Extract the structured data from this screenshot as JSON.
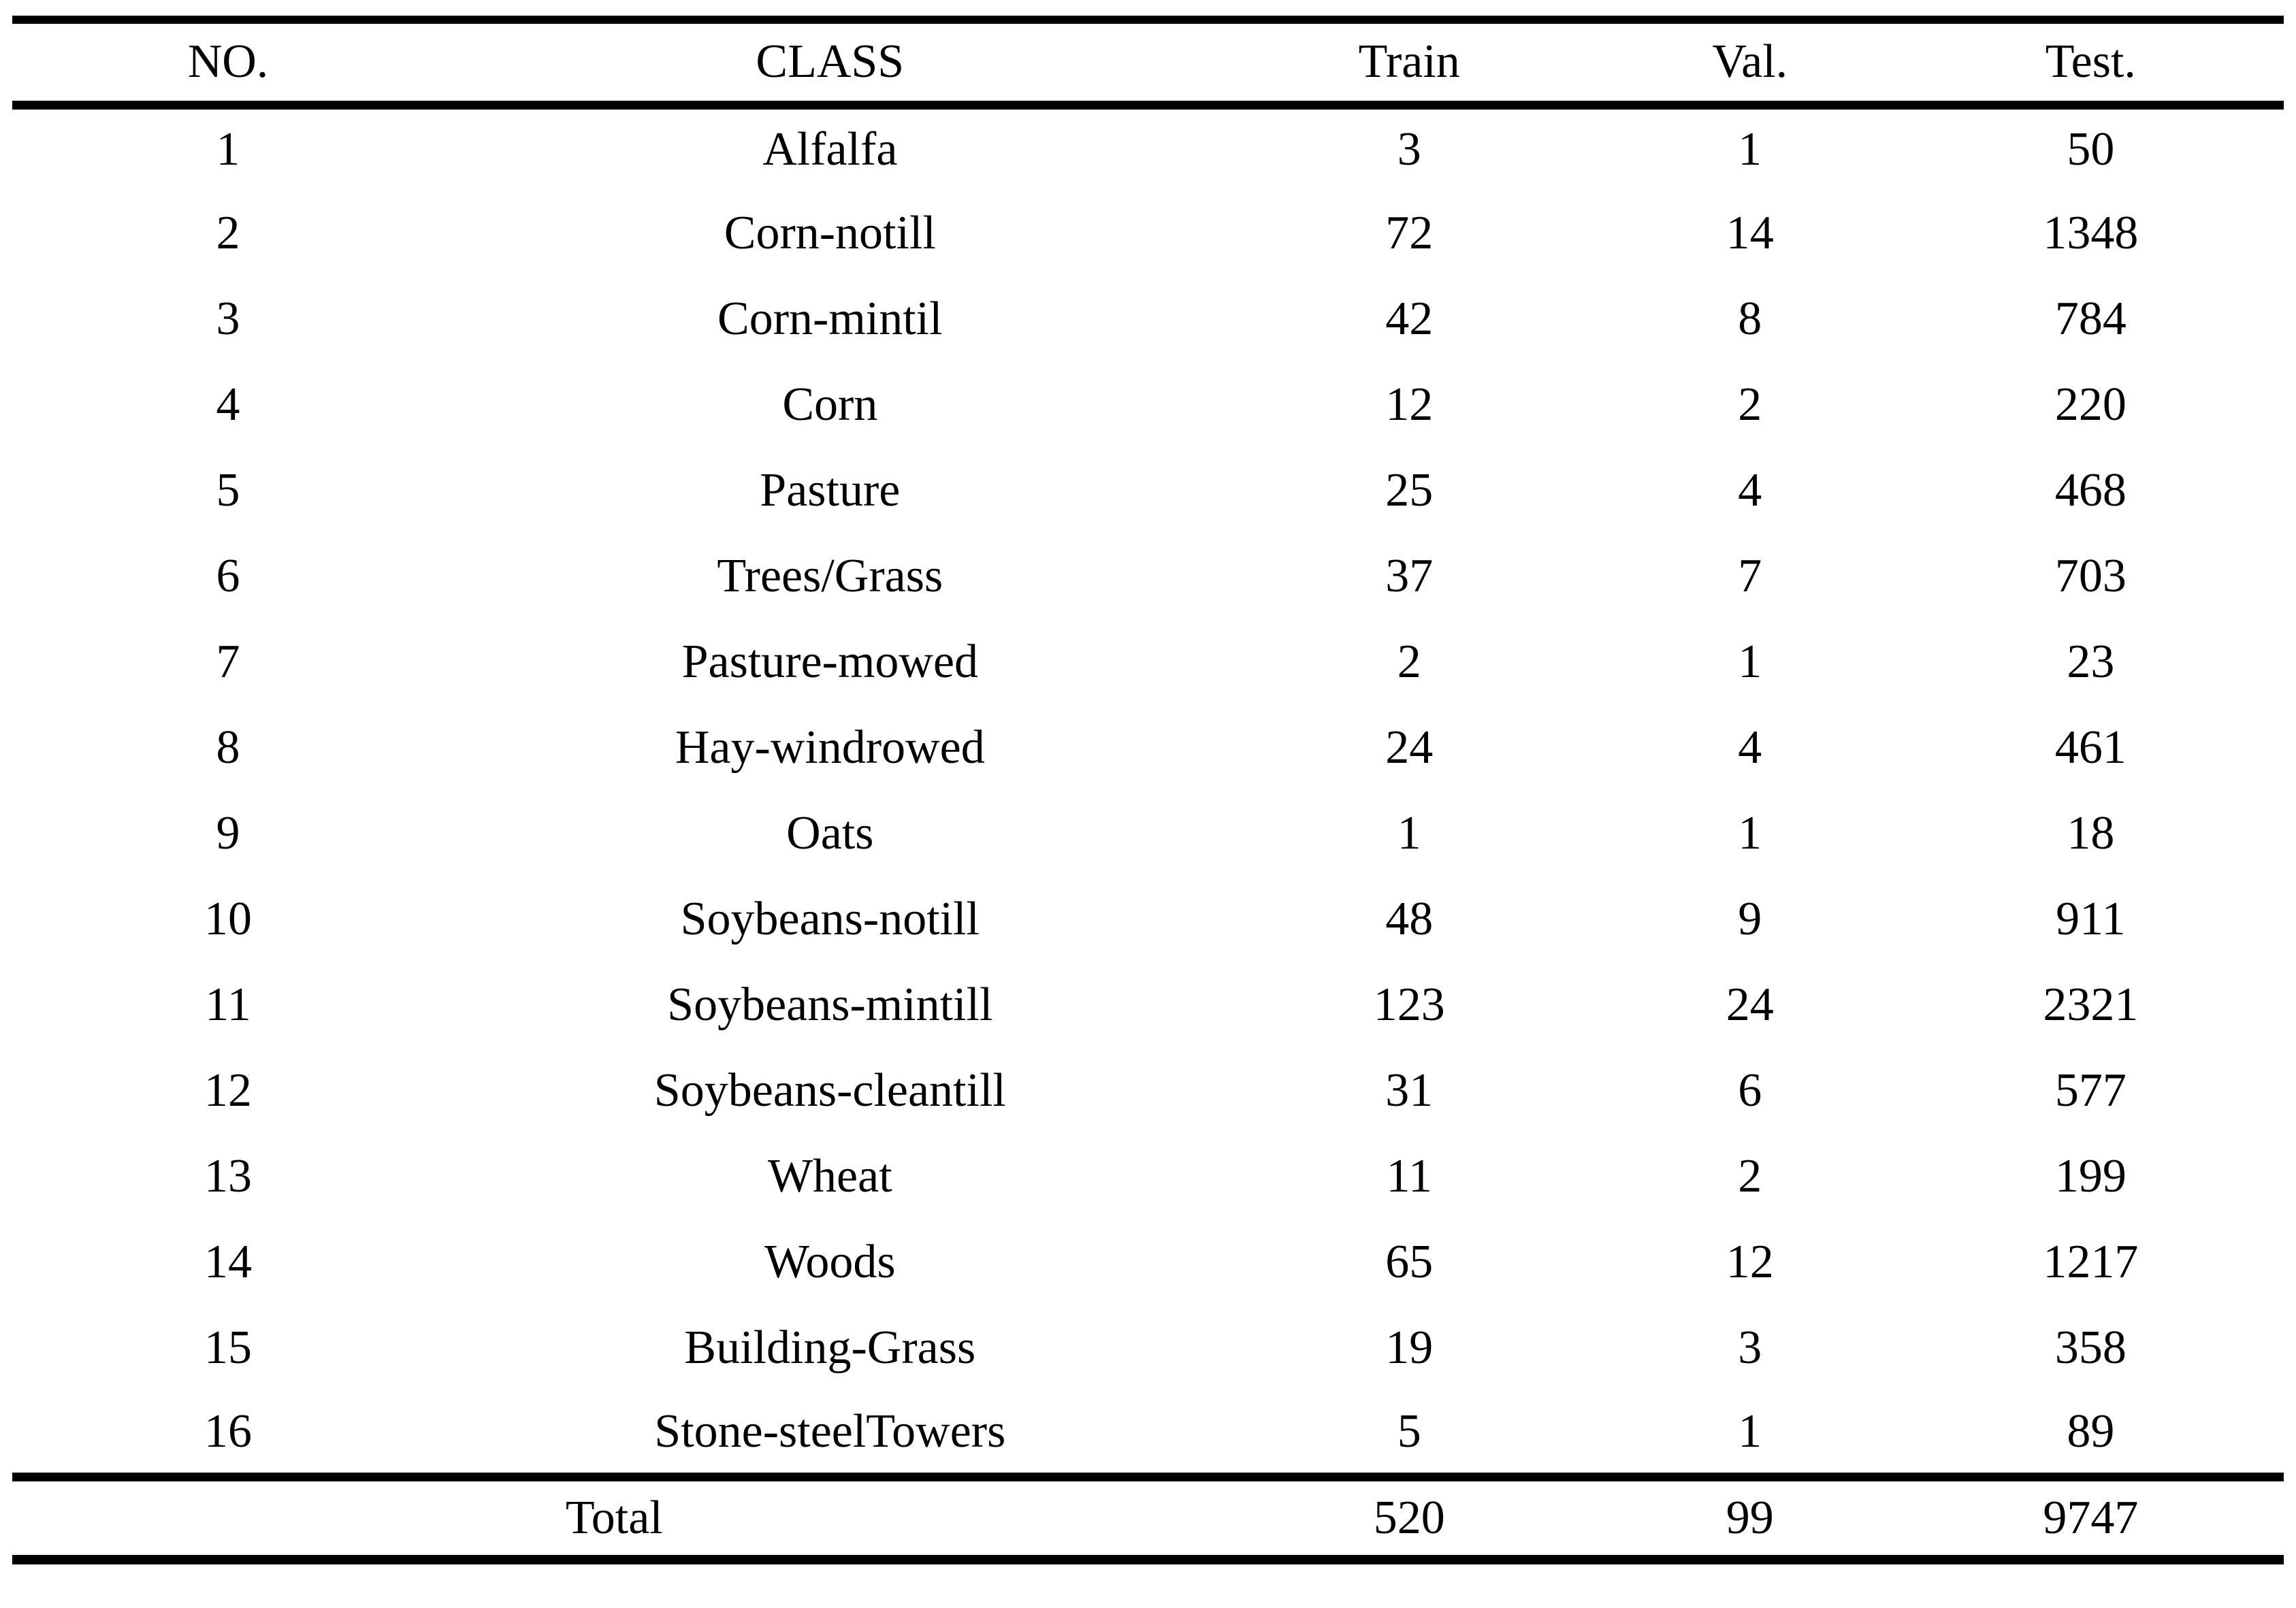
{
  "page": {
    "background_color": "#ffffff",
    "text_color": "#000000",
    "rule_color": "#000000"
  },
  "table": {
    "columns": [
      "NO.",
      "CLASS",
      "Train",
      "Val.",
      "Test."
    ],
    "rows": [
      [
        "1",
        "Alfalfa",
        "3",
        "1",
        "50"
      ],
      [
        "2",
        "Corn-notill",
        "72",
        "14",
        "1348"
      ],
      [
        "3",
        "Corn-mintil",
        "42",
        "8",
        "784"
      ],
      [
        "4",
        "Corn",
        "12",
        "2",
        "220"
      ],
      [
        "5",
        "Pasture",
        "25",
        "4",
        "468"
      ],
      [
        "6",
        "Trees/Grass",
        "37",
        "7",
        "703"
      ],
      [
        "7",
        "Pasture-mowed",
        "2",
        "1",
        "23"
      ],
      [
        "8",
        "Hay-windrowed",
        "24",
        "4",
        "461"
      ],
      [
        "9",
        "Oats",
        "1",
        "1",
        "18"
      ],
      [
        "10",
        "Soybeans-notill",
        "48",
        "9",
        "911"
      ],
      [
        "11",
        "Soybeans-mintill",
        "123",
        "24",
        "2321"
      ],
      [
        "12",
        "Soybeans-cleantill",
        "31",
        "6",
        "577"
      ],
      [
        "13",
        "Wheat",
        "11",
        "2",
        "199"
      ],
      [
        "14",
        "Woods",
        "65",
        "12",
        "1217"
      ],
      [
        "15",
        "Building-Grass",
        "19",
        "3",
        "358"
      ],
      [
        "16",
        "Stone-steelTowers",
        "5",
        "1",
        "89"
      ]
    ],
    "total": {
      "label": "Total",
      "train": "520",
      "val": "99",
      "test": "9747"
    }
  }
}
